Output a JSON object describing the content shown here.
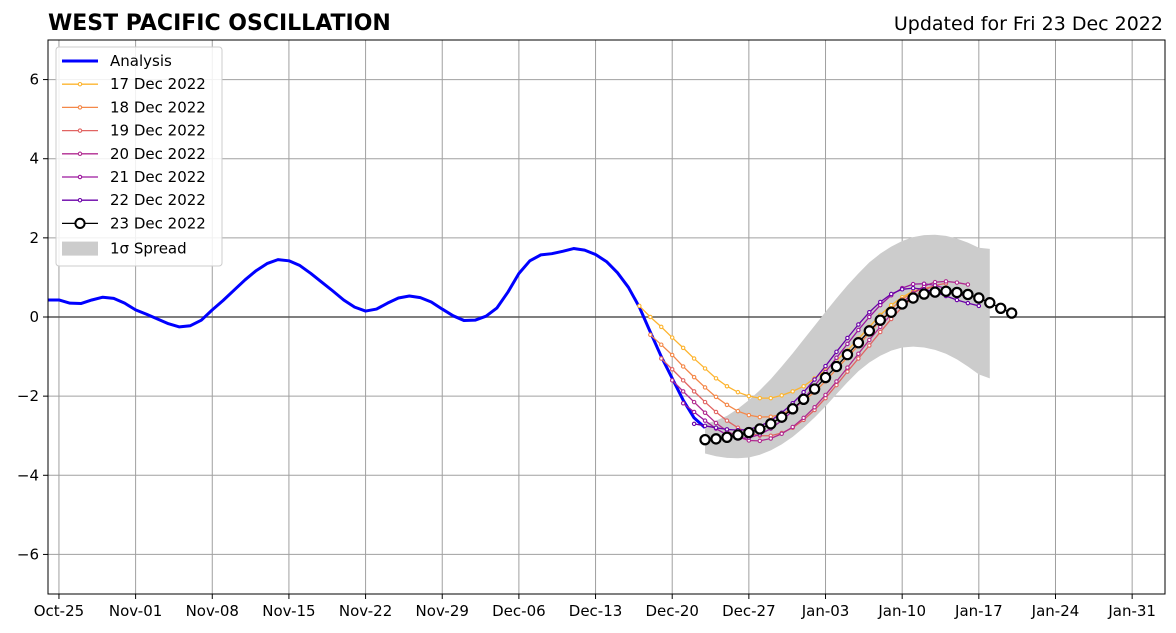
{
  "chart_data": {
    "type": "line",
    "title": "WEST PACIFIC OSCILLATION",
    "subtitle": "Updated for Fri 23 Dec 2022",
    "xlabel": "",
    "ylabel": "",
    "x_range": [
      "2022-10-24",
      "2023-02-03"
    ],
    "ylim": [
      -7,
      7
    ],
    "yticks": [
      -6,
      -4,
      -2,
      0,
      2,
      4,
      6
    ],
    "ytick_labels": [
      "−6",
      "−4",
      "−2",
      "0",
      "2",
      "4",
      "6"
    ],
    "xticks": [
      "2022-10-25",
      "2022-11-01",
      "2022-11-08",
      "2022-11-15",
      "2022-11-22",
      "2022-11-29",
      "2022-12-06",
      "2022-12-13",
      "2022-12-20",
      "2022-12-27",
      "2023-01-03",
      "2023-01-10",
      "2023-01-17",
      "2023-01-24",
      "2023-01-31"
    ],
    "xtick_labels": [
      "Oct-25",
      "Nov-01",
      "Nov-08",
      "Nov-15",
      "Nov-22",
      "Nov-29",
      "Dec-06",
      "Dec-13",
      "Dec-20",
      "Dec-27",
      "Jan-03",
      "Jan-10",
      "Jan-17",
      "Jan-24",
      "Jan-31"
    ],
    "grid": true,
    "legend_position": "top-left",
    "series": [
      {
        "name": "Analysis",
        "color": "#0000ff",
        "start": "2022-10-24",
        "values": [
          0.43,
          0.43,
          0.35,
          0.34,
          0.43,
          0.5,
          0.47,
          0.35,
          0.18,
          0.07,
          -0.05,
          -0.17,
          -0.25,
          -0.22,
          -0.08,
          0.18,
          0.42,
          0.68,
          0.94,
          1.17,
          1.35,
          1.45,
          1.42,
          1.3,
          1.1,
          0.88,
          0.66,
          0.43,
          0.25,
          0.15,
          0.2,
          0.35,
          0.48,
          0.53,
          0.49,
          0.38,
          0.2,
          0.03,
          -0.09,
          -0.08,
          0.02,
          0.23,
          0.63,
          1.1,
          1.42,
          1.57,
          1.6,
          1.66,
          1.73,
          1.69,
          1.58,
          1.4,
          1.12,
          0.75,
          0.25,
          -0.38,
          -1.0,
          -1.55,
          -2.1,
          -2.55,
          -2.8
        ]
      },
      {
        "name": "17 Dec 2022",
        "color": "#fdb42f",
        "start": "2022-12-17",
        "values": [
          0.28,
          0.0,
          -0.25,
          -0.52,
          -0.78,
          -1.05,
          -1.3,
          -1.55,
          -1.75,
          -1.9,
          -2.0,
          -2.05,
          -2.05,
          -1.98,
          -1.88,
          -1.75,
          -1.55,
          -1.35,
          -1.1,
          -0.85,
          -0.55,
          -0.25,
          0.05,
          0.3,
          0.5,
          0.65,
          0.72
        ]
      },
      {
        "name": "18 Dec 2022",
        "color": "#f48849",
        "start": "2022-12-18",
        "values": [
          -0.45,
          -0.7,
          -0.96,
          -1.25,
          -1.52,
          -1.78,
          -2.02,
          -2.22,
          -2.38,
          -2.48,
          -2.53,
          -2.52,
          -2.46,
          -2.32,
          -2.12,
          -1.9,
          -1.62,
          -1.32,
          -1.02,
          -0.72,
          -0.4,
          -0.1,
          0.2,
          0.45,
          0.62,
          0.72,
          0.78
        ]
      },
      {
        "name": "19 Dec 2022",
        "color": "#e16462",
        "start": "2022-12-19",
        "values": [
          -1.05,
          -1.32,
          -1.6,
          -1.88,
          -2.15,
          -2.4,
          -2.62,
          -2.8,
          -2.93,
          -3.0,
          -3.0,
          -2.93,
          -2.8,
          -2.6,
          -2.35,
          -2.05,
          -1.72,
          -1.38,
          -1.05,
          -0.72,
          -0.38,
          -0.05,
          0.25,
          0.5,
          0.68,
          0.8,
          0.85
        ]
      },
      {
        "name": "20 Dec 2022",
        "color": "#b12a90",
        "start": "2022-12-20",
        "values": [
          -1.6,
          -1.88,
          -2.15,
          -2.42,
          -2.68,
          -2.88,
          -3.03,
          -3.12,
          -3.13,
          -3.07,
          -2.95,
          -2.78,
          -2.55,
          -2.28,
          -1.97,
          -1.63,
          -1.28,
          -0.93,
          -0.58,
          -0.25,
          0.07,
          0.36,
          0.6,
          0.78,
          0.88,
          0.9,
          0.87,
          0.82
        ]
      },
      {
        "name": "21 Dec 2022",
        "color": "#9c179e",
        "start": "2022-12-21",
        "values": [
          -2.18,
          -2.4,
          -2.62,
          -2.82,
          -2.98,
          -3.07,
          -3.05,
          -2.97,
          -2.82,
          -2.62,
          -2.37,
          -2.07,
          -1.74,
          -1.39,
          -1.03,
          -0.68,
          -0.33,
          0.0,
          0.3,
          0.55,
          0.73,
          0.83,
          0.84,
          0.8,
          0.72,
          0.6,
          0.5
        ]
      },
      {
        "name": "22 Dec 2022",
        "color": "#6a00a8",
        "start": "2022-12-22",
        "values": [
          -2.7,
          -2.75,
          -2.8,
          -2.84,
          -2.86,
          -2.84,
          -2.76,
          -2.62,
          -2.42,
          -2.18,
          -1.9,
          -1.58,
          -1.24,
          -0.88,
          -0.53,
          -0.19,
          0.12,
          0.38,
          0.58,
          0.7,
          0.73,
          0.7,
          0.63,
          0.53,
          0.43,
          0.35,
          0.28
        ]
      },
      {
        "name": "23 Dec 2022",
        "color": "#000000",
        "markerFill": "#ffffff",
        "start": "2022-12-23",
        "values": [
          -3.1,
          -3.08,
          -3.04,
          -2.98,
          -2.92,
          -2.83,
          -2.7,
          -2.53,
          -2.32,
          -2.08,
          -1.82,
          -1.53,
          -1.25,
          -0.95,
          -0.65,
          -0.35,
          -0.08,
          0.12,
          0.33,
          0.48,
          0.58,
          0.63,
          0.65,
          0.62,
          0.57,
          0.48,
          0.36,
          0.22,
          0.1
        ]
      }
    ],
    "spread": {
      "name": "1σ Spread",
      "color": "#cccccc",
      "start": "2022-12-23",
      "upper": [
        -2.7,
        -2.62,
        -2.5,
        -2.32,
        -2.1,
        -1.85,
        -1.57,
        -1.25,
        -0.92,
        -0.57,
        -0.22,
        0.13,
        0.47,
        0.8,
        1.1,
        1.38,
        1.6,
        1.78,
        1.92,
        2.02,
        2.07,
        2.08,
        2.05,
        1.98,
        1.88,
        1.75,
        1.72
      ],
      "lower": [
        -3.45,
        -3.52,
        -3.56,
        -3.57,
        -3.55,
        -3.48,
        -3.37,
        -3.22,
        -3.03,
        -2.8,
        -2.54,
        -2.26,
        -1.95,
        -1.65,
        -1.37,
        -1.15,
        -0.98,
        -0.85,
        -0.77,
        -0.75,
        -0.77,
        -0.83,
        -0.93,
        -1.07,
        -1.25,
        -1.45,
        -1.55
      ]
    }
  }
}
